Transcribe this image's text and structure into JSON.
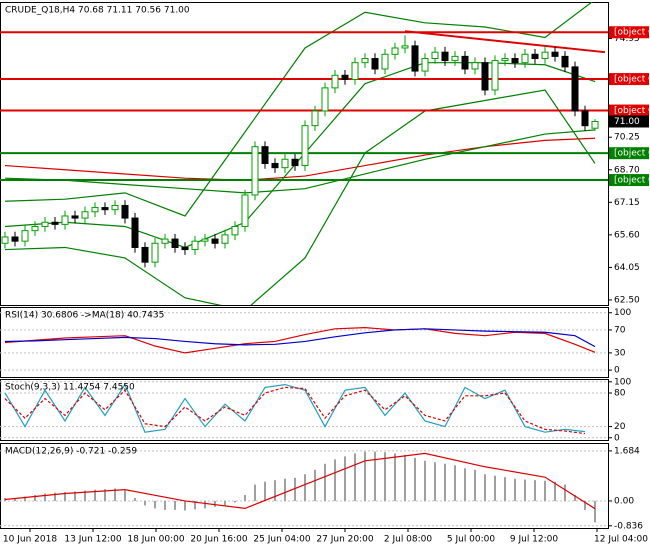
{
  "chart_data": [
    {
      "type": "candlestick",
      "title": "CRUDE_Q18,H4  70.68 71.11 70.56 71.00",
      "ylim": [
        62.26,
        76.69
      ],
      "yticks": [
        {
          "value": 62.5,
          "label": "62.50"
        },
        64.05,
        {
          "value": 65.6,
          "label": "65.60"
        },
        67.15,
        {
          "value": 68.7,
          "label": "68.70"
        },
        70.25,
        74.95
      ],
      "colors": {
        "up": "#00a000",
        "down": "#000000"
      },
      "candles": [
        [
          65.2,
          65.75,
          64.95,
          65.5
        ],
        [
          65.5,
          65.75,
          65.05,
          65.3
        ],
        [
          65.3,
          66.05,
          65.05,
          65.8
        ],
        [
          65.8,
          66.25,
          65.55,
          66.0
        ],
        [
          66.0,
          66.45,
          65.75,
          66.2
        ],
        [
          66.2,
          66.45,
          65.85,
          66.1
        ],
        [
          66.1,
          66.75,
          65.85,
          66.5
        ],
        [
          66.5,
          66.75,
          66.15,
          66.4
        ],
        [
          66.4,
          66.95,
          66.15,
          66.7
        ],
        [
          66.7,
          67.15,
          66.45,
          66.9
        ],
        [
          66.9,
          67.15,
          66.55,
          66.8
        ],
        [
          66.8,
          67.25,
          66.55,
          67.0
        ],
        [
          67.0,
          67.25,
          66.15,
          66.4
        ],
        [
          66.4,
          66.65,
          64.75,
          65.0
        ],
        [
          65.0,
          65.25,
          64.05,
          64.3
        ],
        [
          64.3,
          65.45,
          64.05,
          65.2
        ],
        [
          65.2,
          65.65,
          64.95,
          65.4
        ],
        [
          65.4,
          65.65,
          64.75,
          65.0
        ],
        [
          65.0,
          65.25,
          64.65,
          64.9
        ],
        [
          64.9,
          65.55,
          64.65,
          65.3
        ],
        [
          65.3,
          65.65,
          65.05,
          65.4
        ],
        [
          65.4,
          65.65,
          64.95,
          65.2
        ],
        [
          65.2,
          65.85,
          64.95,
          65.6
        ],
        [
          65.6,
          66.25,
          65.35,
          66.0
        ],
        [
          66.0,
          67.75,
          65.75,
          67.5
        ],
        [
          67.5,
          70.05,
          67.25,
          69.8
        ],
        [
          69.8,
          70.05,
          68.75,
          69.0
        ],
        [
          69.0,
          69.25,
          68.55,
          68.8
        ],
        [
          68.8,
          69.45,
          68.55,
          69.2
        ],
        [
          69.2,
          69.45,
          68.65,
          68.9
        ],
        [
          68.9,
          71.05,
          68.65,
          70.8
        ],
        [
          70.8,
          71.75,
          70.55,
          71.5
        ],
        [
          71.5,
          72.85,
          71.25,
          72.6
        ],
        [
          72.6,
          73.45,
          72.35,
          73.2
        ],
        [
          73.2,
          73.45,
          72.75,
          73.0
        ],
        [
          73.0,
          74.05,
          72.75,
          73.8
        ],
        [
          73.8,
          74.25,
          73.55,
          74.0
        ],
        [
          74.0,
          74.25,
          73.25,
          73.5
        ],
        [
          73.5,
          74.45,
          73.25,
          74.2
        ],
        [
          74.2,
          74.75,
          73.95,
          74.5
        ],
        [
          74.5,
          75.1,
          74.25,
          74.6
        ],
        [
          74.6,
          74.85,
          73.15,
          73.4
        ],
        [
          73.4,
          74.25,
          73.15,
          74.0
        ],
        [
          74.0,
          74.55,
          73.75,
          74.3
        ],
        [
          74.3,
          74.55,
          73.65,
          73.9
        ],
        [
          73.9,
          74.35,
          73.65,
          74.1
        ],
        [
          74.1,
          74.35,
          73.25,
          73.5
        ],
        [
          73.5,
          74.05,
          73.25,
          73.8
        ],
        [
          73.8,
          74.05,
          72.25,
          72.5
        ],
        [
          72.5,
          74.15,
          72.25,
          73.9
        ],
        [
          73.9,
          74.25,
          73.65,
          74.0
        ],
        [
          74.0,
          74.25,
          73.55,
          73.8
        ],
        [
          73.8,
          74.45,
          73.55,
          74.2
        ],
        [
          74.2,
          74.45,
          73.75,
          74.0
        ],
        [
          74.0,
          74.55,
          73.75,
          74.3
        ],
        [
          74.3,
          74.55,
          73.85,
          74.1
        ],
        [
          74.1,
          74.35,
          73.35,
          73.6
        ],
        [
          73.6,
          73.85,
          71.25,
          71.5
        ],
        [
          71.5,
          71.75,
          70.55,
          70.8
        ],
        [
          70.68,
          71.11,
          70.56,
          71.0
        ]
      ],
      "series": [
        {
          "color": "#dd0000",
          "x": [
            0,
            6,
            12,
            18,
            24,
            30,
            36,
            42,
            48,
            54,
            59
          ],
          "values": [
            68.9,
            68.7,
            68.5,
            68.3,
            68.2,
            68.4,
            68.9,
            69.4,
            69.8,
            70.1,
            70.2
          ]
        },
        {
          "color": "#008000",
          "x": [
            0,
            6,
            12,
            18,
            24,
            30,
            36,
            42,
            48,
            54,
            59
          ],
          "values": [
            68.3,
            68.2,
            68.0,
            67.8,
            67.6,
            67.8,
            68.5,
            69.2,
            69.8,
            70.4,
            70.6
          ]
        },
        {
          "color": "#008000",
          "x": [
            0,
            6,
            12,
            18,
            24,
            30,
            36,
            42,
            48,
            54,
            59
          ],
          "values": [
            67.2,
            67.3,
            67.6,
            66.5,
            70.5,
            74.5,
            76.2,
            75.7,
            75.5,
            75.0,
            76.8
          ]
        },
        {
          "color": "#008000",
          "x": [
            0,
            6,
            12,
            18,
            24,
            30,
            36,
            42,
            48,
            54,
            59
          ],
          "values": [
            66.0,
            66.2,
            66.0,
            65.0,
            66.2,
            69.5,
            72.8,
            73.8,
            73.8,
            73.7,
            72.9
          ]
        },
        {
          "color": "#008000",
          "x": [
            0,
            6,
            12,
            18,
            24,
            30,
            36,
            42,
            48,
            54,
            59
          ],
          "values": [
            64.9,
            65.0,
            64.5,
            62.6,
            62.0,
            64.5,
            69.5,
            71.5,
            72.0,
            72.5,
            69.0
          ]
        }
      ],
      "trendline": {
        "color": "#dd0000",
        "x": [
          40,
          60
        ],
        "values": [
          75.3,
          74.3
        ]
      },
      "levels": [
        {
          "value": 75.25,
          "color": "#e00000"
        },
        {
          "value": 73.02,
          "color": "#e00000"
        },
        {
          "value": 71.52,
          "color": "#e00000"
        },
        {
          "value": 69.49,
          "color": "#008000"
        },
        {
          "value": 68.21,
          "color": "#008000"
        },
        {
          "value": 71,
          "label": "71.00",
          "color": "#000000"
        }
      ],
      "time_labels": [
        "10 Jun 2018",
        "13 Jun 12:00",
        "18 Jun 00:00",
        "20 Jun 16:00",
        "25 Jun 04:00",
        "27 Jun 20:00",
        "2 Jul 08:00",
        "5 Jul 00:00",
        "9 Jul 12:00",
        "12 Jul 04:00"
      ]
    },
    {
      "type": "line",
      "title": "RSI(14) 30.6806  ->MA(18) 40.7435",
      "ylim": [
        -12,
        110
      ],
      "yticks": [
        0,
        30,
        70,
        100
      ],
      "series": [
        {
          "color": "#dd0000",
          "x": [
            0,
            3,
            6,
            9,
            12,
            15,
            18,
            21,
            24,
            27,
            30,
            33,
            36,
            39,
            42,
            45,
            48,
            51,
            54,
            57,
            59
          ],
          "values": [
            48,
            52,
            56,
            58,
            60,
            42,
            30,
            38,
            46,
            50,
            62,
            72,
            74,
            70,
            72,
            64,
            60,
            66,
            64,
            45,
            31
          ]
        },
        {
          "color": "#0000cc",
          "x": [
            0,
            3,
            6,
            9,
            12,
            15,
            18,
            21,
            24,
            27,
            30,
            33,
            36,
            39,
            42,
            45,
            48,
            51,
            54,
            57,
            59
          ],
          "values": [
            50,
            51,
            53,
            55,
            57,
            55,
            50,
            46,
            44,
            45,
            50,
            58,
            65,
            70,
            72,
            70,
            68,
            67,
            66,
            60,
            41
          ]
        }
      ]
    },
    {
      "type": "line",
      "title": "Stoch(9,3,3) 11.4754 7.4550",
      "ylim": [
        -4,
        105
      ],
      "yticks": [
        0,
        20,
        80,
        100
      ],
      "series": [
        {
          "color": "#20a0c0",
          "x": [
            0,
            2,
            4,
            6,
            8,
            10,
            12,
            14,
            16,
            18,
            20,
            22,
            24,
            26,
            28,
            30,
            32,
            34,
            36,
            38,
            40,
            42,
            44,
            46,
            48,
            50,
            52,
            54,
            56,
            58
          ],
          "values": [
            80,
            20,
            85,
            30,
            90,
            40,
            95,
            10,
            15,
            70,
            20,
            60,
            30,
            90,
            95,
            85,
            20,
            85,
            90,
            40,
            80,
            30,
            20,
            90,
            70,
            85,
            20,
            10,
            15,
            11
          ]
        },
        {
          "color": "#dd0000",
          "dashed": true,
          "x": [
            0,
            2,
            4,
            6,
            8,
            10,
            12,
            14,
            16,
            18,
            20,
            22,
            24,
            26,
            28,
            30,
            32,
            34,
            36,
            38,
            40,
            42,
            44,
            46,
            48,
            50,
            52,
            54,
            56,
            58
          ],
          "values": [
            70,
            35,
            70,
            40,
            80,
            50,
            85,
            25,
            20,
            55,
            30,
            55,
            40,
            80,
            90,
            88,
            35,
            75,
            85,
            50,
            75,
            40,
            30,
            75,
            75,
            80,
            30,
            15,
            12,
            7.5
          ]
        }
      ]
    },
    {
      "type": "macd",
      "title": "MACD(12,26,9) -0.721 -0.259",
      "ylim": [
        -0.91,
        1.95
      ],
      "yticks": [
        -0.836,
        {
          "value": 0,
          "label": "0.00"
        },
        1.684
      ],
      "histogram": {
        "color": "#a0a0a0",
        "values": [
          0.1,
          0.1,
          0.15,
          0.2,
          0.25,
          0.28,
          0.3,
          0.32,
          0.35,
          0.38,
          0.4,
          0.42,
          0.35,
          0.1,
          -0.15,
          -0.25,
          -0.3,
          -0.3,
          -0.32,
          -0.28,
          -0.25,
          -0.2,
          -0.15,
          -0.05,
          0.2,
          0.55,
          0.65,
          0.7,
          0.75,
          0.78,
          0.9,
          1.05,
          1.25,
          1.4,
          1.5,
          1.6,
          1.66,
          1.66,
          1.64,
          1.6,
          1.55,
          1.45,
          1.35,
          1.3,
          1.25,
          1.2,
          1.1,
          1.05,
          0.9,
          0.85,
          0.8,
          0.75,
          0.72,
          0.7,
          0.68,
          0.65,
          0.55,
          0.2,
          -0.3,
          -0.72
        ]
      },
      "series": [
        {
          "color": "#dd0000",
          "x": [
            0,
            6,
            12,
            18,
            24,
            30,
            36,
            42,
            48,
            54,
            59
          ],
          "values": [
            0.05,
            0.25,
            0.38,
            0.0,
            -0.25,
            0.55,
            1.35,
            1.6,
            1.15,
            0.8,
            -0.26
          ]
        }
      ]
    }
  ]
}
